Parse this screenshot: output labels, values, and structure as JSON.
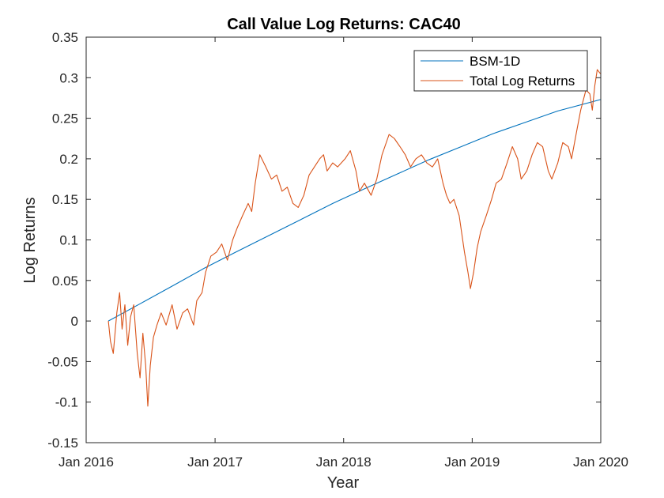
{
  "chart_data": {
    "type": "line",
    "title": "Call Value Log Returns: CAC40",
    "xlabel": "Year",
    "ylabel": "Log Returns",
    "xlim": [
      "2016-01-01",
      "2020-01-01"
    ],
    "ylim": [
      -0.15,
      0.35
    ],
    "x_ticks": [
      "Jan 2016",
      "Jan 2017",
      "Jan 2018",
      "Jan 2019",
      "Jan 2020"
    ],
    "y_ticks": [
      "-0.15",
      "-0.1",
      "-0.05",
      "0",
      "0.05",
      "0.1",
      "0.15",
      "0.2",
      "0.25",
      "0.3",
      "0.35"
    ],
    "grid": false,
    "legend_position": "top-right",
    "series": [
      {
        "name": "BSM-1D",
        "color": "#0072bd",
        "points": [
          [
            "2016-03-04",
            0.0
          ],
          [
            "2016-06-01",
            0.021
          ],
          [
            "2016-09-01",
            0.043
          ],
          [
            "2016-12-01",
            0.065
          ],
          [
            "2017-03-01",
            0.085
          ],
          [
            "2017-06-01",
            0.105
          ],
          [
            "2017-09-01",
            0.125
          ],
          [
            "2017-12-01",
            0.145
          ],
          [
            "2018-03-01",
            0.163
          ],
          [
            "2018-06-01",
            0.181
          ],
          [
            "2018-09-01",
            0.199
          ],
          [
            "2018-12-01",
            0.215
          ],
          [
            "2019-03-01",
            0.231
          ],
          [
            "2019-06-01",
            0.245
          ],
          [
            "2019-09-01",
            0.259
          ],
          [
            "2019-12-31",
            0.273
          ]
        ]
      },
      {
        "name": "Total Log Returns",
        "color": "#d95319",
        "points": [
          [
            "2016-03-04",
            0.0
          ],
          [
            "2016-03-10",
            -0.025
          ],
          [
            "2016-03-18",
            -0.04
          ],
          [
            "2016-03-28",
            0.01
          ],
          [
            "2016-04-05",
            0.035
          ],
          [
            "2016-04-12",
            -0.01
          ],
          [
            "2016-04-20",
            0.02
          ],
          [
            "2016-04-28",
            -0.03
          ],
          [
            "2016-05-06",
            0.005
          ],
          [
            "2016-05-15",
            0.02
          ],
          [
            "2016-05-25",
            -0.04
          ],
          [
            "2016-06-02",
            -0.07
          ],
          [
            "2016-06-10",
            -0.015
          ],
          [
            "2016-06-18",
            -0.055
          ],
          [
            "2016-06-24",
            -0.105
          ],
          [
            "2016-07-01",
            -0.055
          ],
          [
            "2016-07-10",
            -0.02
          ],
          [
            "2016-07-20",
            -0.005
          ],
          [
            "2016-08-01",
            0.01
          ],
          [
            "2016-08-15",
            -0.005
          ],
          [
            "2016-09-01",
            0.02
          ],
          [
            "2016-09-15",
            -0.01
          ],
          [
            "2016-10-01",
            0.01
          ],
          [
            "2016-10-15",
            0.015
          ],
          [
            "2016-11-01",
            -0.005
          ],
          [
            "2016-11-10",
            0.025
          ],
          [
            "2016-11-25",
            0.035
          ],
          [
            "2016-12-05",
            0.06
          ],
          [
            "2016-12-20",
            0.08
          ],
          [
            "2017-01-05",
            0.085
          ],
          [
            "2017-01-20",
            0.095
          ],
          [
            "2017-02-05",
            0.075
          ],
          [
            "2017-02-20",
            0.1
          ],
          [
            "2017-03-05",
            0.115
          ],
          [
            "2017-03-20",
            0.13
          ],
          [
            "2017-04-05",
            0.145
          ],
          [
            "2017-04-15",
            0.135
          ],
          [
            "2017-04-25",
            0.17
          ],
          [
            "2017-05-08",
            0.205
          ],
          [
            "2017-05-25",
            0.19
          ],
          [
            "2017-06-10",
            0.175
          ],
          [
            "2017-06-25",
            0.18
          ],
          [
            "2017-07-10",
            0.16
          ],
          [
            "2017-07-25",
            0.165
          ],
          [
            "2017-08-10",
            0.145
          ],
          [
            "2017-08-25",
            0.14
          ],
          [
            "2017-09-10",
            0.155
          ],
          [
            "2017-09-25",
            0.18
          ],
          [
            "2017-10-10",
            0.19
          ],
          [
            "2017-10-25",
            0.2
          ],
          [
            "2017-11-05",
            0.205
          ],
          [
            "2017-11-15",
            0.185
          ],
          [
            "2017-12-01",
            0.195
          ],
          [
            "2017-12-15",
            0.19
          ],
          [
            "2018-01-05",
            0.2
          ],
          [
            "2018-01-20",
            0.21
          ],
          [
            "2018-02-05",
            0.185
          ],
          [
            "2018-02-15",
            0.16
          ],
          [
            "2018-03-01",
            0.17
          ],
          [
            "2018-03-20",
            0.155
          ],
          [
            "2018-04-05",
            0.175
          ],
          [
            "2018-04-20",
            0.205
          ],
          [
            "2018-05-10",
            0.23
          ],
          [
            "2018-05-25",
            0.225
          ],
          [
            "2018-06-10",
            0.215
          ],
          [
            "2018-06-25",
            0.205
          ],
          [
            "2018-07-10",
            0.19
          ],
          [
            "2018-07-25",
            0.2
          ],
          [
            "2018-08-10",
            0.205
          ],
          [
            "2018-08-25",
            0.195
          ],
          [
            "2018-09-10",
            0.19
          ],
          [
            "2018-09-25",
            0.2
          ],
          [
            "2018-10-10",
            0.17
          ],
          [
            "2018-10-20",
            0.155
          ],
          [
            "2018-10-30",
            0.145
          ],
          [
            "2018-11-10",
            0.15
          ],
          [
            "2018-11-25",
            0.13
          ],
          [
            "2018-12-10",
            0.085
          ],
          [
            "2018-12-20",
            0.06
          ],
          [
            "2018-12-27",
            0.04
          ],
          [
            "2019-01-05",
            0.06
          ],
          [
            "2019-01-15",
            0.09
          ],
          [
            "2019-01-25",
            0.11
          ],
          [
            "2019-02-10",
            0.13
          ],
          [
            "2019-02-25",
            0.15
          ],
          [
            "2019-03-10",
            0.17
          ],
          [
            "2019-03-25",
            0.175
          ],
          [
            "2019-04-10",
            0.195
          ],
          [
            "2019-04-25",
            0.215
          ],
          [
            "2019-05-10",
            0.2
          ],
          [
            "2019-05-20",
            0.175
          ],
          [
            "2019-06-05",
            0.185
          ],
          [
            "2019-06-20",
            0.205
          ],
          [
            "2019-07-05",
            0.22
          ],
          [
            "2019-07-20",
            0.215
          ],
          [
            "2019-08-05",
            0.185
          ],
          [
            "2019-08-15",
            0.175
          ],
          [
            "2019-09-01",
            0.195
          ],
          [
            "2019-09-15",
            0.22
          ],
          [
            "2019-10-01",
            0.215
          ],
          [
            "2019-10-10",
            0.2
          ],
          [
            "2019-10-25",
            0.235
          ],
          [
            "2019-11-05",
            0.26
          ],
          [
            "2019-11-20",
            0.285
          ],
          [
            "2019-12-01",
            0.28
          ],
          [
            "2019-12-08",
            0.26
          ],
          [
            "2019-12-15",
            0.29
          ],
          [
            "2019-12-22",
            0.31
          ],
          [
            "2019-12-31",
            0.305
          ]
        ]
      }
    ]
  }
}
